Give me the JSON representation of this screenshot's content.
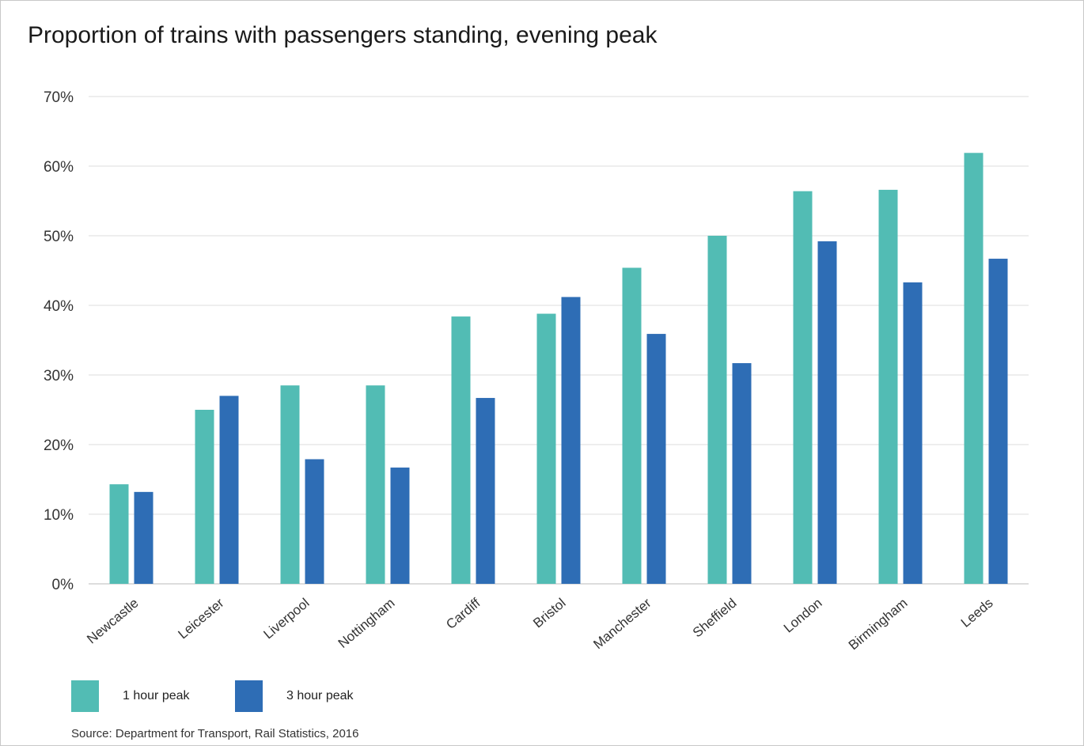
{
  "colors": {
    "one_hour": "#52bcb4",
    "three_hour": "#2e6db5",
    "grid": "#dddddd"
  },
  "legend": {
    "one_hour_label": "1 hour peak",
    "three_hour_label": "3 hour peak"
  },
  "source": "Source: Department for Transport, Rail Statistics, 2016",
  "chart_data": {
    "type": "bar",
    "title": "Proportion of trains with passengers standing, evening peak",
    "xlabel": "",
    "ylabel": "",
    "ylim": [
      0,
      70
    ],
    "yticks": [
      "0%",
      "10%",
      "20%",
      "30%",
      "40%",
      "50%",
      "60%",
      "70%"
    ],
    "grid": true,
    "legend_position": "bottom-left",
    "categories": [
      "Newcastle",
      "Leicester",
      "Liverpool",
      "Nottingham",
      "Cardiff",
      "Bristol",
      "Manchester",
      "Sheffield",
      "London",
      "Birmingham",
      "Leeds"
    ],
    "series": [
      {
        "name": "1 hour peak",
        "values": [
          14.3,
          25.0,
          28.5,
          28.5,
          38.4,
          38.8,
          45.4,
          50.0,
          56.4,
          56.6,
          61.9
        ]
      },
      {
        "name": "3 hour peak",
        "values": [
          13.2,
          27.0,
          17.9,
          16.7,
          26.7,
          41.2,
          35.9,
          31.7,
          49.2,
          43.3,
          46.7
        ]
      }
    ]
  }
}
